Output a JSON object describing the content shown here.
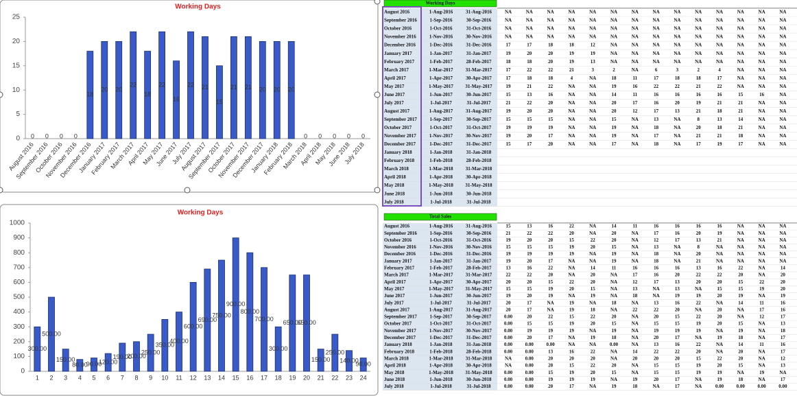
{
  "chart_data": [
    {
      "type": "bar",
      "title": "Working Days",
      "color": "#3a5bc7",
      "categories": [
        "August 2016",
        "September 2016",
        "October 2016",
        "November 2016",
        "December 2016",
        "January 2017",
        "February 2017",
        "March 2017",
        "April 2017",
        "May 2017",
        "June 2017",
        "July 2017",
        "August 2017",
        "September 2017",
        "October 2017",
        "November 2017",
        "December 2017",
        "January 2018",
        "February 2018",
        "March 2018",
        "April 2018",
        "May 2018",
        "June 2018",
        "July 2018"
      ],
      "values": [
        0,
        0,
        0,
        0,
        18,
        20,
        20,
        22,
        18,
        22,
        16,
        22,
        21,
        15,
        21,
        21,
        20,
        20,
        20,
        0,
        0,
        0,
        0,
        0
      ],
      "ylim": [
        0,
        25
      ],
      "yticks": [
        0,
        5,
        10,
        15,
        20,
        25
      ]
    },
    {
      "type": "bar",
      "title": "Working Days",
      "color": "#3a5bc7",
      "categories": [
        "1",
        "2",
        "3",
        "4",
        "5",
        "6",
        "7",
        "8",
        "9",
        "10",
        "11",
        "12",
        "13",
        "14",
        "15",
        "16",
        "17",
        "18",
        "19",
        "20",
        "21",
        "22",
        "23",
        "24"
      ],
      "values": [
        300,
        500,
        150,
        80,
        90,
        120,
        190,
        200,
        250,
        350,
        400,
        600,
        690,
        750,
        900,
        800,
        700,
        300,
        650,
        650,
        150,
        250,
        140,
        90
      ],
      "value_labels": [
        "300.00",
        "500.00",
        "150.00",
        "80.00",
        "90.00",
        "120.00",
        "190.00",
        "200.00",
        "250.00",
        "350.00",
        "400.00",
        "600.00",
        "690.00",
        "750.00",
        "900.00",
        "800.00",
        "700.00",
        "300.00",
        "650.00",
        "650.00",
        "150.00",
        "250.00",
        "140.00",
        "90.00"
      ],
      "ylim": [
        0,
        1000
      ],
      "yticks": [
        0,
        100,
        200,
        300,
        400,
        500,
        600,
        700,
        800,
        900,
        1000
      ]
    }
  ],
  "tables": [
    {
      "title": "Working Days",
      "rows": [
        [
          "August 2016",
          "1-Aug-2016",
          "31-Aug-2016",
          "NA",
          "NA",
          "NA",
          "NA",
          "NA",
          "NA",
          "NA",
          "NA",
          "NA",
          "NA",
          "NA",
          "NA",
          "NA",
          "NA"
        ],
        [
          "September 2016",
          "1-Sep-2016",
          "30-Sep-2016",
          "NA",
          "NA",
          "NA",
          "NA",
          "NA",
          "NA",
          "NA",
          "NA",
          "NA",
          "NA",
          "NA",
          "NA",
          "NA",
          "NA"
        ],
        [
          "October 2016",
          "1-Oct-2016",
          "31-Oct-2016",
          "NA",
          "NA",
          "NA",
          "NA",
          "NA",
          "NA",
          "NA",
          "NA",
          "NA",
          "NA",
          "NA",
          "NA",
          "NA",
          "NA"
        ],
        [
          "November 2016",
          "1-Nov-2016",
          "30-Nov-2016",
          "NA",
          "NA",
          "NA",
          "NA",
          "NA",
          "NA",
          "NA",
          "NA",
          "NA",
          "NA",
          "NA",
          "NA",
          "NA",
          "NA"
        ],
        [
          "December 2016",
          "1-Dec-2016",
          "31-Dec-2016",
          17,
          17,
          18,
          18,
          12,
          "NA",
          "NA",
          "NA",
          "NA",
          "NA",
          "NA",
          "NA",
          "NA",
          "NA"
        ],
        [
          "January 2017",
          "1-Jan-2017",
          "31-Jan-2017",
          19,
          20,
          20,
          19,
          19,
          "NA",
          "NA",
          "NA",
          "NA",
          "NA",
          "NA",
          "NA",
          "NA",
          "NA"
        ],
        [
          "February 2017",
          "1-Feb-2017",
          "28-Feb-2017",
          18,
          18,
          20,
          19,
          13,
          "NA",
          "NA",
          "NA",
          "NA",
          "NA",
          "NA",
          "NA",
          "NA",
          "NA"
        ],
        [
          "March 2017",
          "1-Mar-2017",
          "31-Mar-2017",
          17,
          22,
          22,
          21,
          3,
          2,
          "NA",
          6,
          3,
          2,
          4,
          "NA",
          "NA",
          "NA"
        ],
        [
          "April 2017",
          "1-Apr-2017",
          "30-Apr-2017",
          17,
          18,
          18,
          4,
          "NA",
          18,
          11,
          17,
          18,
          18,
          17,
          "NA",
          "NA",
          "NA"
        ],
        [
          "May 2017",
          "1-May-2017",
          "31-May-2017",
          19,
          21,
          22,
          "NA",
          "NA",
          19,
          16,
          22,
          22,
          21,
          22,
          "NA",
          "NA",
          "NA"
        ],
        [
          "June 2017",
          "1-Jun-2017",
          "30-Jun-2017",
          15,
          13,
          16,
          "NA",
          "NA",
          14,
          11,
          16,
          16,
          16,
          16,
          15,
          16,
          "NA"
        ],
        [
          "July 2017",
          "1-Jul-2017",
          "31-Jul-2017",
          21,
          22,
          20,
          "NA",
          "NA",
          20,
          17,
          16,
          20,
          19,
          21,
          21,
          "NA",
          "NA"
        ],
        [
          "August 2017",
          "1-Aug-2017",
          "31-Aug-2017",
          19,
          20,
          20,
          "NA",
          "NA",
          20,
          12,
          17,
          13,
          21,
          18,
          21,
          "NA",
          "NA"
        ],
        [
          "September 2017",
          "1-Sep-2017",
          "30-Sep-2017",
          15,
          15,
          15,
          "NA",
          "NA",
          15,
          "NA",
          13,
          "NA",
          8,
          13,
          14,
          "NA",
          "NA"
        ],
        [
          "October 2017",
          "1-Oct-2017",
          "31-Oct-2017",
          19,
          19,
          19,
          "NA",
          "NA",
          19,
          "NA",
          18,
          "NA",
          20,
          18,
          21,
          "NA",
          "NA"
        ],
        [
          "November 2017",
          "1-Nov-2017",
          "30-Nov-2017",
          19,
          20,
          17,
          "NA",
          "NA",
          19,
          "NA",
          17,
          "NA",
          21,
          21,
          18,
          "NA",
          "NA"
        ],
        [
          "December 2017",
          "1-Dec-2017",
          "31-Dec-2017",
          15,
          17,
          20,
          "NA",
          "NA",
          17,
          "NA",
          18,
          "NA",
          17,
          19,
          17,
          "NA",
          "NA"
        ],
        [
          "January 2018",
          "1-Jan-2018",
          "31-Jan-2018"
        ],
        [
          "February 2018",
          "1-Feb-2018",
          "28-Feb-2018"
        ],
        [
          "March 2018",
          "1-Mar-2018",
          "31-Mar-2018"
        ],
        [
          "April 2018",
          "1-Apr-2018",
          "30-Apr-2018"
        ],
        [
          "May 2018",
          "1-May-2018",
          "31-May-2018"
        ],
        [
          "June 2018",
          "1-Jun-2018",
          "30-Jun-2018"
        ],
        [
          "July 2018",
          "1-Jul-2018",
          "31-Jul-2018"
        ]
      ]
    },
    {
      "title": "Total Sales",
      "rows": [
        [
          "August 2016",
          "1-Aug-2016",
          "31-Aug-2016",
          15,
          13,
          16,
          22,
          "NA",
          14,
          11,
          16,
          16,
          16,
          16,
          "NA",
          "NA",
          "NA"
        ],
        [
          "September 2016",
          "1-Sep-2016",
          "30-Sep-2016",
          21,
          22,
          22,
          20,
          "NA",
          20,
          "NA",
          17,
          16,
          20,
          19,
          "NA",
          "NA",
          "NA"
        ],
        [
          "October 2016",
          "1-Oct-2016",
          "31-Oct-2016",
          19,
          20,
          20,
          15,
          22,
          20,
          "NA",
          12,
          17,
          13,
          21,
          "NA",
          "NA",
          "NA"
        ],
        [
          "November 2016",
          "1-Nov-2016",
          "30-Nov-2016",
          15,
          15,
          15,
          19,
          20,
          15,
          "NA",
          13,
          "NA",
          8,
          "NA",
          "NA",
          "NA",
          "NA"
        ],
        [
          "December 2016",
          "1-Dec-2016",
          "31-Dec-2016",
          19,
          19,
          19,
          19,
          "NA",
          19,
          "NA",
          18,
          "NA",
          20,
          "NA",
          "NA",
          "NA",
          "NA"
        ],
        [
          "January 2017",
          "1-Jan-2017",
          "31-Jan-2017",
          19,
          20,
          17,
          "NA",
          "NA",
          19,
          "NA",
          18,
          "NA",
          21,
          "NA",
          "NA",
          "NA",
          "NA"
        ],
        [
          "February 2017",
          "1-Feb-2017",
          "28-Feb-2017",
          13,
          16,
          22,
          "NA",
          14,
          11,
          16,
          16,
          16,
          13,
          16,
          22,
          "NA",
          14
        ],
        [
          "March 2017",
          "1-Mar-2017",
          "31-Mar-2017",
          22,
          22,
          20,
          "NA",
          20,
          "NA",
          17,
          16,
          20,
          22,
          22,
          20,
          "NA",
          20
        ],
        [
          "April 2017",
          "1-Apr-2017",
          "30-Apr-2017",
          20,
          20,
          15,
          22,
          20,
          "NA",
          12,
          17,
          13,
          20,
          20,
          15,
          22,
          20
        ],
        [
          "May 2017",
          "1-May-2017",
          "31-May-2017",
          15,
          15,
          19,
          20,
          15,
          "NA",
          13,
          "NA",
          13,
          "NA",
          15,
          15,
          19,
          20
        ],
        [
          "June 2017",
          "1-Jun-2017",
          "30-Jun-2017",
          19,
          20,
          19,
          "NA",
          19,
          "NA",
          18,
          "NA",
          19,
          19,
          20,
          19,
          "NA",
          19
        ],
        [
          "July 2017",
          "1-Jul-2017",
          "31-Jul-2017",
          20,
          17,
          "NA",
          19,
          "NA",
          18,
          "NA",
          13,
          16,
          22,
          "NA",
          14,
          11,
          16
        ],
        [
          "August 2017",
          "1-Aug-2017",
          "31-Aug-2017",
          20,
          17,
          "NA",
          19,
          18,
          "NA",
          22,
          22,
          20,
          "NA",
          20,
          "NA",
          17,
          16
        ],
        [
          "September 2017",
          "1-Sep-2017",
          "30-Sep-2017",
          "0.00",
          20,
          22,
          15,
          22,
          20,
          "NA",
          20,
          15,
          22,
          20,
          "NA",
          12,
          17
        ],
        [
          "October 2017",
          "1-Oct-2017",
          "31-Oct-2017",
          "0.00",
          15,
          15,
          19,
          20,
          15,
          "NA",
          15,
          15,
          19,
          20,
          15,
          "NA",
          13
        ],
        [
          "November 2017",
          "1-Nov-2017",
          "30-Nov-2017",
          "0.00",
          19,
          19,
          19,
          "NA",
          19,
          "NA",
          19,
          19,
          19,
          "NA",
          19,
          "NA",
          18
        ],
        [
          "December 2017",
          "1-Dec-2017",
          "31-Dec-2017",
          "0.00",
          20,
          17,
          "NA",
          19,
          18,
          "NA",
          20,
          17,
          "NA",
          19,
          18,
          "NA",
          17
        ],
        [
          "January 2018",
          "1-Jan-2018",
          "31-Jan-2018",
          "0.00",
          "0.00",
          "0.00",
          "NA",
          "NA",
          "0.00",
          "NA",
          13,
          16,
          22,
          "NA",
          14,
          11,
          16
        ],
        [
          "February 2018",
          "1-Feb-2018",
          "28-Feb-2018",
          "0.00",
          "0.00",
          13,
          16,
          22,
          "NA",
          14,
          22,
          22,
          20,
          "NA",
          20,
          "NA",
          17
        ],
        [
          "March 2018",
          "1-Mar-2018",
          "31-Mar-2018",
          "NA",
          "0.00",
          20,
          20,
          20,
          "NA",
          20,
          20,
          20,
          15,
          22,
          20,
          "NA",
          12
        ],
        [
          "April 2018",
          "1-Apr-2018",
          "30-Apr-2018",
          "NA",
          "0.00",
          20,
          15,
          22,
          20,
          "NA",
          15,
          15,
          19,
          20,
          15,
          "NA",
          13
        ],
        [
          "May 2018",
          "1-May-2018",
          "31-May-2018",
          "0.00",
          "0.00",
          15,
          19,
          20,
          15,
          "NA",
          15,
          15,
          19,
          19,
          "NA",
          19,
          "NA"
        ],
        [
          "June 2018",
          "1-Jun-2018",
          "30-Jun-2018",
          "0.00",
          "0.00",
          19,
          19,
          19,
          "NA",
          19,
          20,
          17,
          "NA",
          19,
          18,
          "NA",
          17
        ],
        [
          "July 2018",
          "1-Jul-2018",
          "31-Jul-2018",
          "0.00",
          "0.00",
          20,
          17,
          "NA",
          19,
          18,
          "NA",
          17,
          "NA",
          "0.00",
          "0.00",
          "0.00",
          "0.00"
        ]
      ]
    }
  ]
}
